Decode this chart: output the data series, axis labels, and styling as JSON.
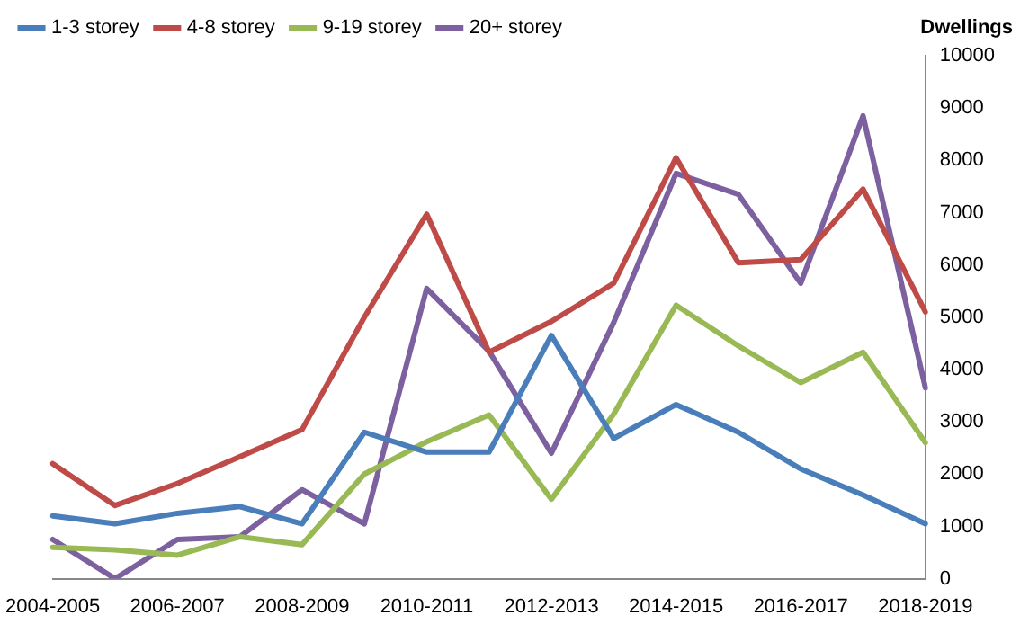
{
  "chart_data": {
    "type": "line",
    "ylabel": "Dwellings",
    "categories": [
      "2004-2005",
      null,
      "2006-2007",
      null,
      "2008-2009",
      null,
      "2010-2011",
      null,
      "2012-2013",
      null,
      "2014-2015",
      null,
      "2016-2017",
      null,
      "2018-2019"
    ],
    "series": [
      {
        "name": "1-3 storey",
        "color": "#4a7ebb",
        "values": [
          1200,
          1050,
          1250,
          1380,
          1050,
          2800,
          2420,
          2420,
          4650,
          2680,
          3330,
          2800,
          2100,
          1600,
          1050
        ]
      },
      {
        "name": "4-8 storey",
        "color": "#be4b48",
        "values": [
          2200,
          1400,
          1820,
          2330,
          2850,
          5000,
          6970,
          4330,
          4920,
          5650,
          8050,
          6040,
          6100,
          7450,
          5100
        ]
      },
      {
        "name": "9-19 storey",
        "color": "#98b954",
        "values": [
          600,
          550,
          450,
          800,
          650,
          2000,
          2620,
          3130,
          1520,
          3150,
          5230,
          4450,
          3750,
          4330,
          2600
        ]
      },
      {
        "name": "20+ storey",
        "color": "#7d60a0",
        "values": [
          750,
          0,
          750,
          800,
          1700,
          1050,
          5550,
          4350,
          2400,
          4900,
          7750,
          7350,
          5650,
          8850,
          3650
        ]
      }
    ],
    "ylim": [
      0,
      10000
    ],
    "yticks": [
      0,
      1000,
      2000,
      3000,
      4000,
      5000,
      6000,
      7000,
      8000,
      9000,
      10000
    ],
    "grid": false,
    "legend": "top left",
    "marker": "none",
    "line_style": "solid"
  }
}
